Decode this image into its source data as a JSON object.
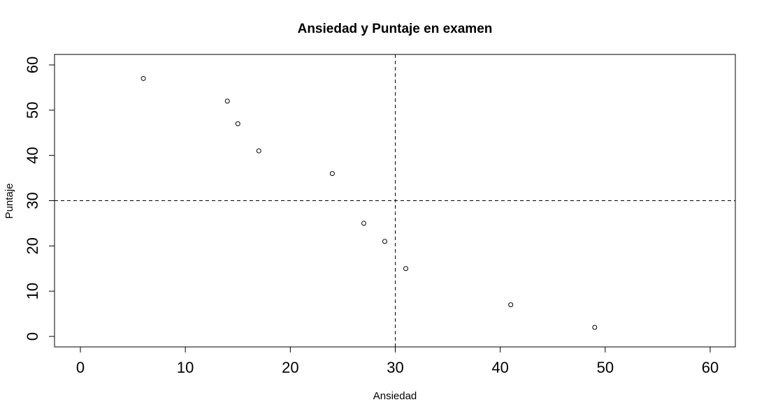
{
  "chart_data": {
    "type": "scatter",
    "title": "Ansiedad y Puntaje en examen",
    "xlabel": "Ansiedad",
    "ylabel": "Puntaje",
    "xlim": [
      0,
      60
    ],
    "ylim": [
      0,
      60
    ],
    "xticks": [
      "0",
      "10",
      "20",
      "30",
      "40",
      "50",
      "60"
    ],
    "yticks": [
      "0",
      "10",
      "20",
      "30",
      "40",
      "50",
      "60"
    ],
    "grid": false,
    "points": [
      {
        "x": 6,
        "y": 57
      },
      {
        "x": 14,
        "y": 52
      },
      {
        "x": 15,
        "y": 47
      },
      {
        "x": 17,
        "y": 41
      },
      {
        "x": 24,
        "y": 36
      },
      {
        "x": 27,
        "y": 25
      },
      {
        "x": 29,
        "y": 21
      },
      {
        "x": 31,
        "y": 15
      },
      {
        "x": 41,
        "y": 7
      },
      {
        "x": 49,
        "y": 2
      }
    ],
    "reference_lines": {
      "vertical_x": 30,
      "horizontal_y": 30,
      "style": "dashed"
    },
    "marker": "open-circle",
    "colors": {
      "marker": "#000000",
      "axes": "#000000",
      "background": "#ffffff"
    }
  }
}
